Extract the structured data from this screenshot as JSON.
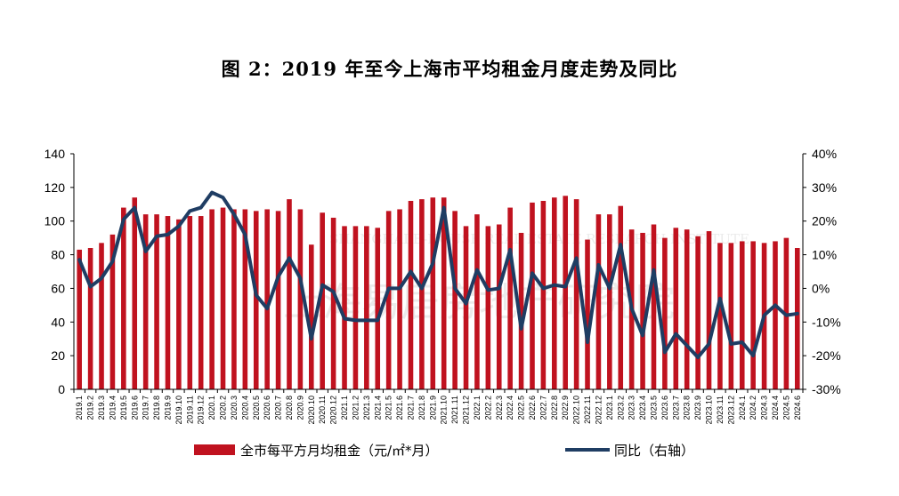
{
  "chart_data": {
    "type": "bar+line",
    "title": "图 2：2019 年至今上海市平均租金月度走势及同比",
    "categories": [
      "2019.1",
      "2019.2",
      "2019.3",
      "2019.4",
      "2019.5",
      "2019.6",
      "2019.7",
      "2019.8",
      "2019.9",
      "2019.10",
      "2019.11",
      "2019.12",
      "2020.1",
      "2020.2",
      "2020.3",
      "2020.4",
      "2020.5",
      "2020.6",
      "2020.7",
      "2020.8",
      "2020.9",
      "2020.10",
      "2020.11",
      "2020.12",
      "2021.1",
      "2021.2",
      "2021.3",
      "2021.4",
      "2021.5",
      "2021.6",
      "2021.7",
      "2021.8",
      "2021.9",
      "2021.10",
      "2021.11",
      "2021.12",
      "2022.1",
      "2022.2",
      "2022.3",
      "2022.4",
      "2022.5",
      "2022.6",
      "2022.7",
      "2022.8",
      "2022.9",
      "2022.10",
      "2022.11",
      "2022.12",
      "2023.1",
      "2023.2",
      "2023.3",
      "2023.4",
      "2023.5",
      "2023.6",
      "2023.7",
      "2023.8",
      "2023.9",
      "2023.10",
      "2023.11",
      "2023.12",
      "2024.1",
      "2024.2",
      "2024.3",
      "2024.4",
      "2024.5",
      "2024.6"
    ],
    "series": [
      {
        "name": "全市每平方月均租金（元/㎡*月）",
        "type": "bar",
        "axis": "left",
        "color": "#c0121f",
        "values": [
          83,
          84,
          87,
          92,
          108,
          114,
          104,
          104,
          103,
          101,
          103,
          103,
          107,
          108,
          107,
          107,
          106,
          107,
          106,
          113,
          107,
          86,
          105,
          102,
          97,
          97,
          97,
          96,
          106,
          107,
          112,
          113,
          114,
          114,
          106,
          97,
          104,
          97,
          98,
          108,
          93,
          111,
          112,
          114,
          115,
          113,
          89,
          104,
          104,
          109,
          95,
          93,
          98,
          90,
          96,
          95,
          91,
          94,
          87,
          87,
          88,
          88,
          87,
          88,
          90,
          84
        ]
      },
      {
        "name": "同比（右轴）",
        "type": "line",
        "axis": "right",
        "color": "#1f3d63",
        "values": [
          8.5,
          0.5,
          3,
          8,
          20.5,
          24,
          11,
          15.5,
          16,
          18.5,
          23,
          24,
          28.5,
          27,
          22,
          16,
          -2,
          -6,
          3.5,
          9,
          3,
          -15,
          1,
          -1,
          -9,
          -9.5,
          -9.5,
          -9.5,
          0,
          0,
          5,
          0,
          7.5,
          24,
          0,
          -4.5,
          5.5,
          -0.5,
          0,
          11.5,
          -12,
          4.5,
          0,
          1,
          0.5,
          9,
          -16,
          7,
          0,
          13,
          -6,
          -14,
          5.5,
          -19,
          -13.5,
          -17,
          -20.5,
          -16.5,
          -3,
          -16.5,
          -16,
          -20,
          -8,
          -5,
          -8,
          -7.5
        ]
      }
    ],
    "y_left": {
      "min": 0,
      "max": 140,
      "step": 20,
      "ticks": [
        "0",
        "20",
        "40",
        "60",
        "80",
        "100",
        "120",
        "140"
      ]
    },
    "y_right": {
      "min": -30,
      "max": 40,
      "step": 10,
      "ticks": [
        "-30%",
        "-20%",
        "-10%",
        "0%",
        "10%",
        "20%",
        "30%",
        "40%"
      ]
    },
    "grid": false,
    "legend_position": "bottom"
  },
  "watermark": {
    "line1": "SHANGHAI E-HOUSE REAL ESTATE RESEARCH INSTITUTE",
    "line2": "上海易居房地产研究院"
  }
}
